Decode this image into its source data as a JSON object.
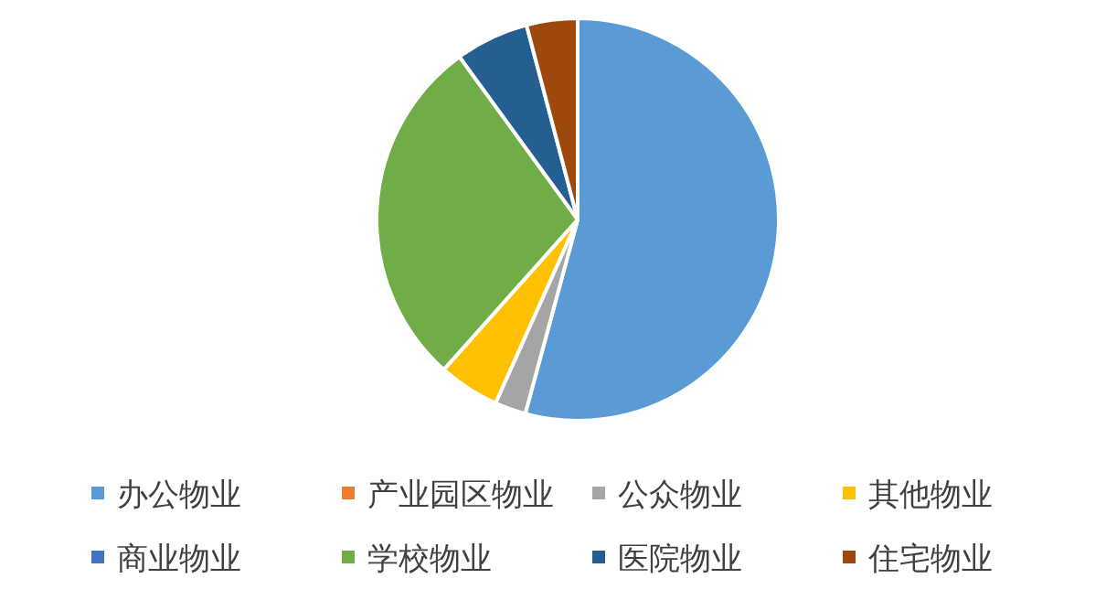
{
  "chart_data": {
    "type": "pie",
    "categories": [
      "办公物业",
      "产业园区物业",
      "公众物业",
      "其他物业",
      "商业物业",
      "学校物业",
      "医院物业",
      "住宅物业"
    ],
    "values": [
      54.2,
      0,
      2.5,
      4.9,
      0,
      28.4,
      5.9,
      4.1
    ],
    "colors": [
      "#5b9bd5",
      "#ed7d31",
      "#a5a5a5",
      "#ffc000",
      "#4472c4",
      "#70ad47",
      "#255e91",
      "#9e480e"
    ],
    "legend": "bottom"
  }
}
